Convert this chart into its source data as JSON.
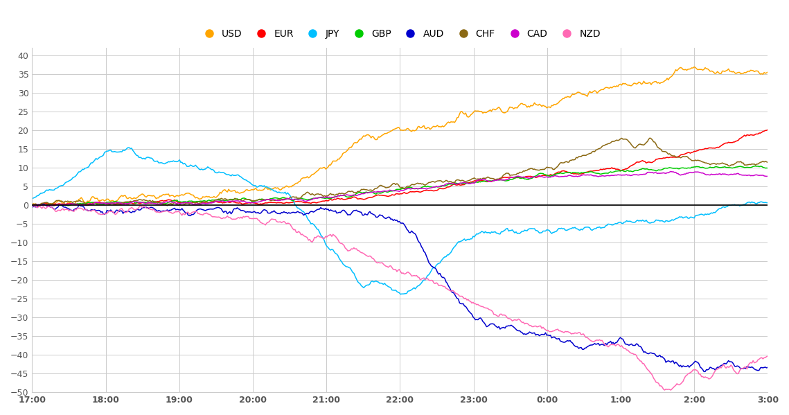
{
  "currencies": [
    "USD",
    "EUR",
    "JPY",
    "GBP",
    "AUD",
    "CHF",
    "CAD",
    "NZD"
  ],
  "colors": {
    "USD": "#FFA500",
    "EUR": "#FF0000",
    "JPY": "#00BFFF",
    "GBP": "#00CC00",
    "AUD": "#0000CD",
    "CHF": "#8B6914",
    "CAD": "#CC00CC",
    "NZD": "#FF69B4"
  },
  "ylim": [
    -50,
    42
  ],
  "yticks": [
    -50,
    -45,
    -40,
    -35,
    -30,
    -25,
    -20,
    -15,
    -10,
    -5,
    0,
    5,
    10,
    15,
    20,
    25,
    30,
    35,
    40
  ],
  "xtick_labels": [
    "17:00",
    "18:00",
    "19:00",
    "20:00",
    "21:00",
    "22:00",
    "23:00",
    "0:00",
    "1:00",
    "2:00",
    "3:00"
  ],
  "background_color": "#FFFFFF",
  "grid_color": "#CCCCCC",
  "n_points": 600,
  "n_hours": 10
}
